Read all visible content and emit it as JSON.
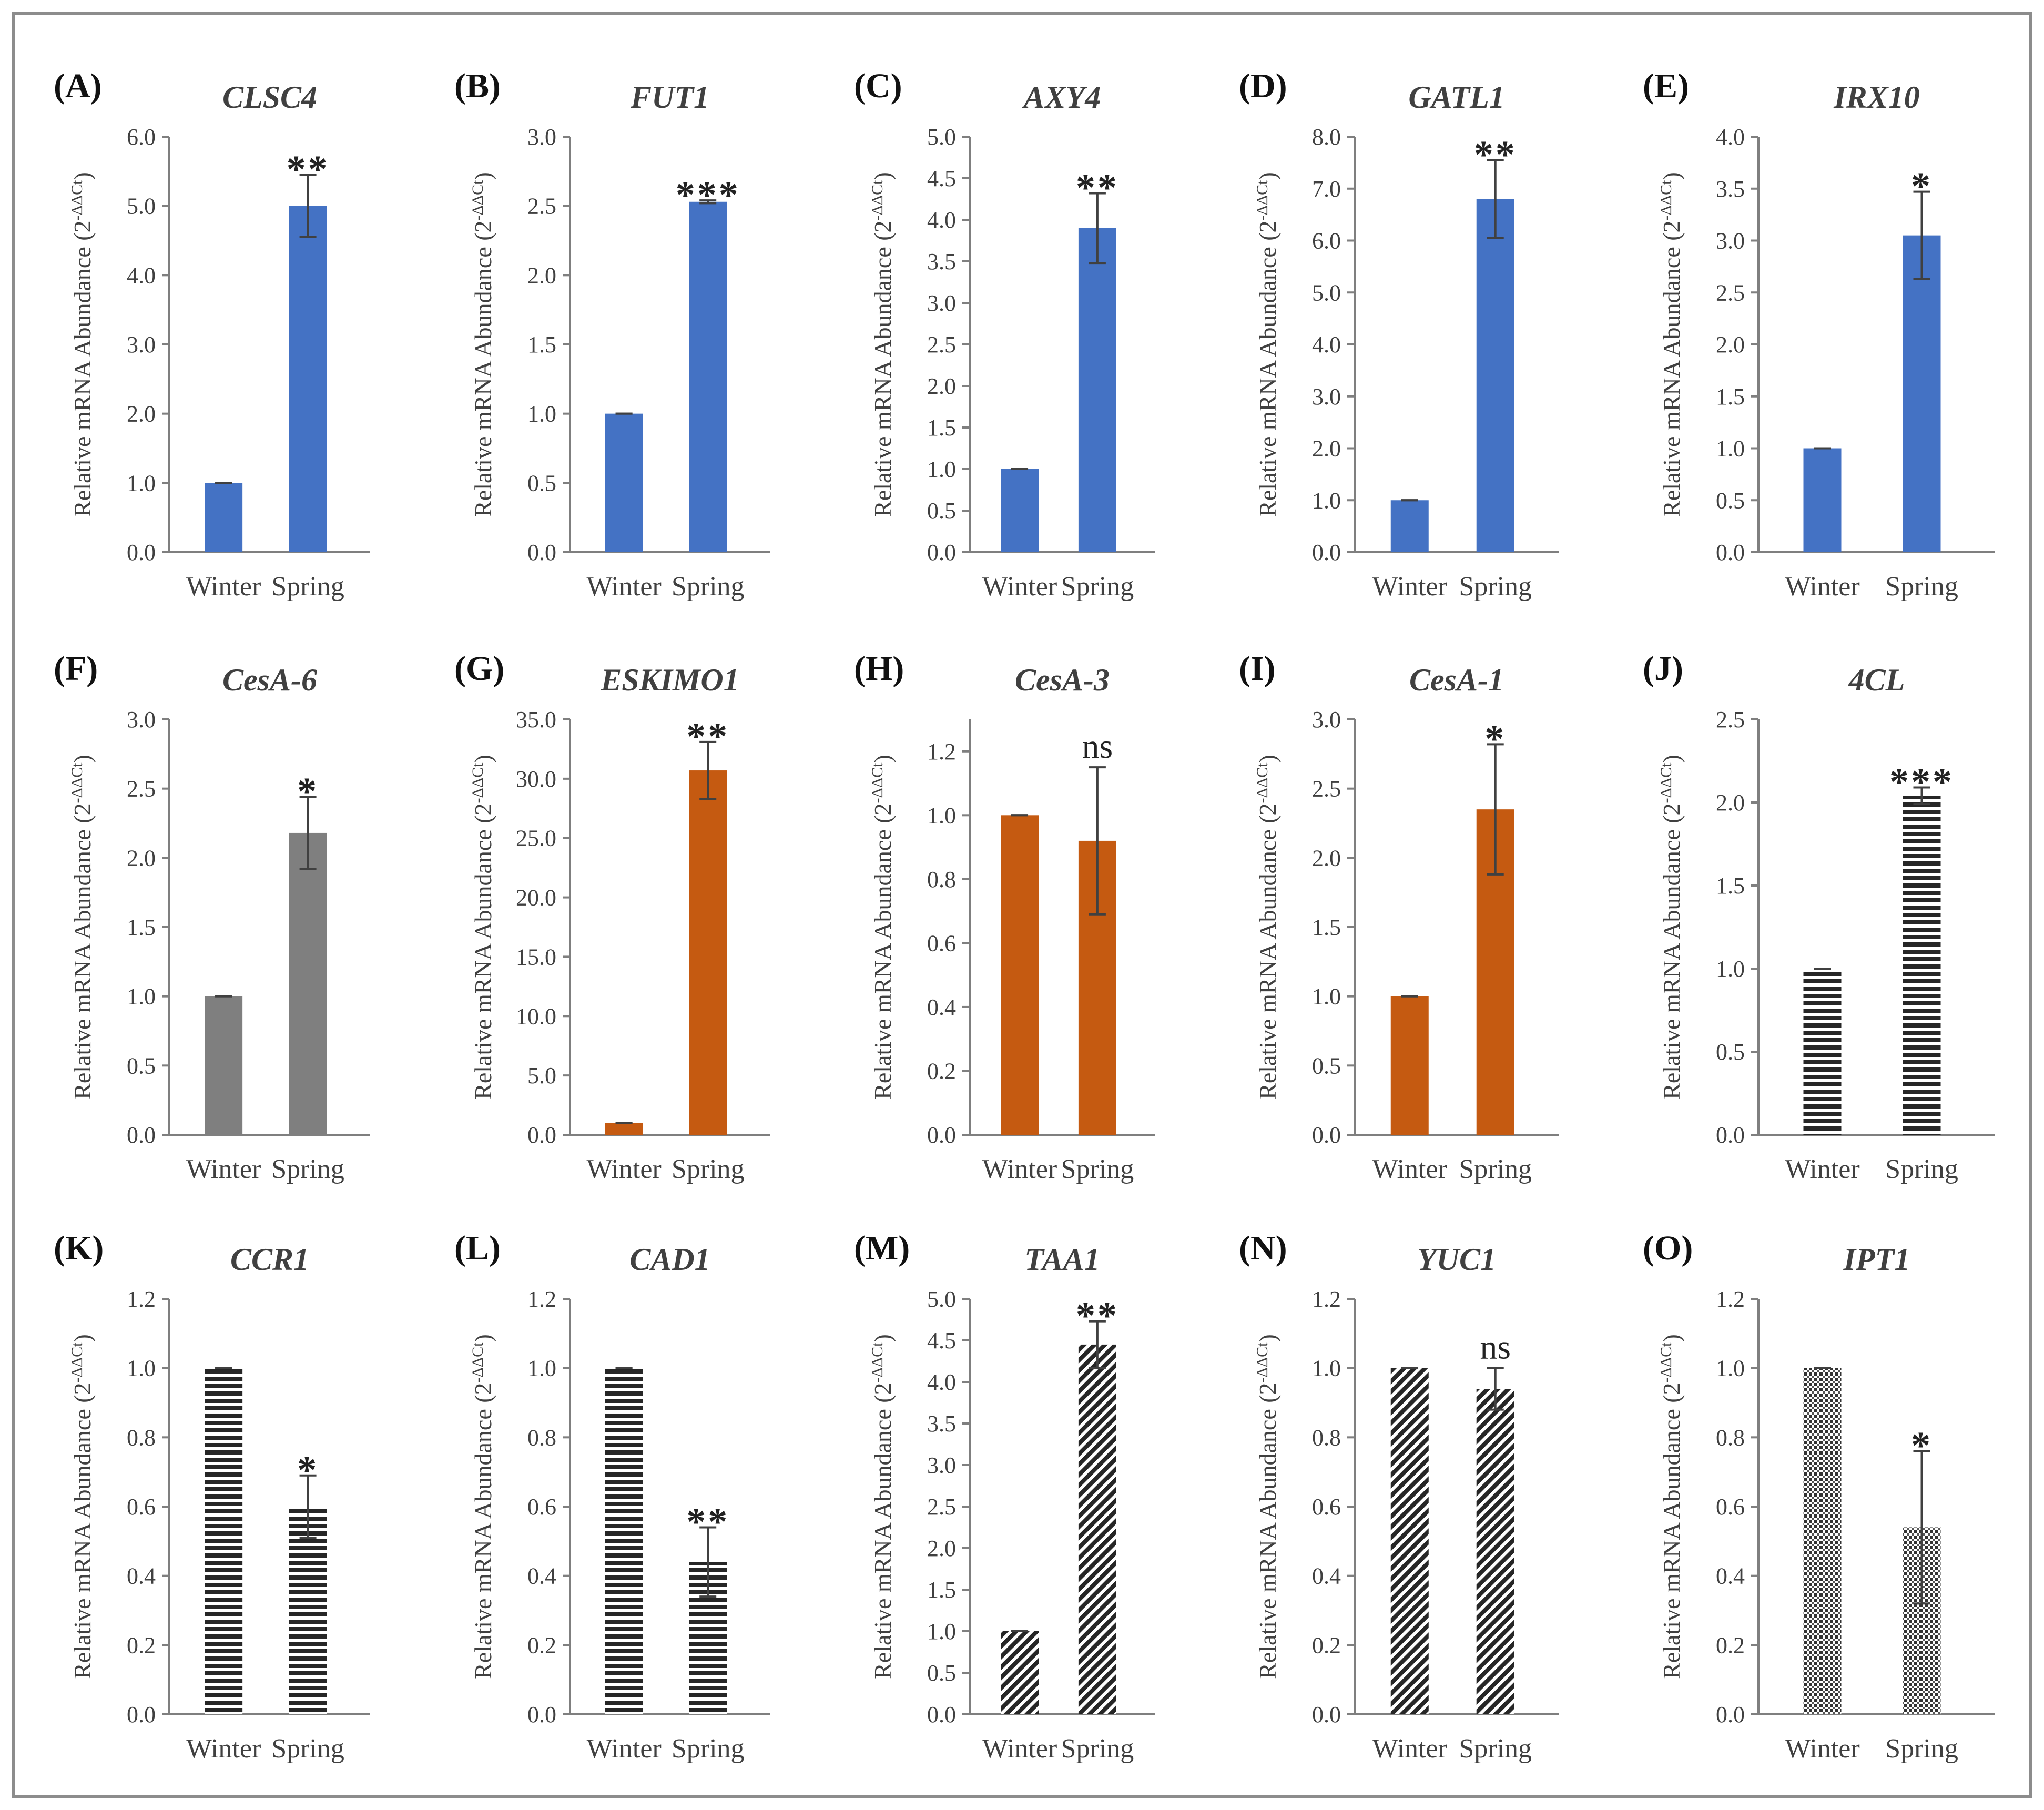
{
  "chart_data": [
    {
      "panel": "(A)",
      "gene": "CLSC4",
      "type": "bar",
      "categories": [
        "Winter",
        "Spring"
      ],
      "values": [
        1.0,
        5.0
      ],
      "errors": [
        0.0,
        0.45
      ],
      "significance": "**",
      "ylim": [
        0,
        6
      ],
      "ticks": [
        "0.0",
        "1.0",
        "2.0",
        "3.0",
        "4.0",
        "5.0",
        "6.0"
      ],
      "color": "#4472c4",
      "pattern": "solid",
      "ylabel_main": "Relative mRNA Abundance (2",
      "ylabel_sup": "-ΔΔCt",
      "ylabel_close": ")"
    },
    {
      "panel": "(B)",
      "gene": "FUT1",
      "type": "bar",
      "categories": [
        "Winter",
        "Spring"
      ],
      "values": [
        1.0,
        2.53
      ],
      "errors": [
        0.0,
        0.01
      ],
      "significance": "***",
      "ylim": [
        0,
        3
      ],
      "ticks": [
        "0.0",
        "0.5",
        "1.0",
        "1.5",
        "2.0",
        "2.5",
        "3.0"
      ],
      "color": "#4472c4",
      "pattern": "solid",
      "ylabel_main": "Relative mRNA Abundance (2",
      "ylabel_sup": "-ΔΔCt",
      "ylabel_close": ")"
    },
    {
      "panel": "(C)",
      "gene": "AXY4",
      "type": "bar",
      "categories": [
        "Winter",
        "Spring"
      ],
      "values": [
        1.0,
        3.9
      ],
      "errors": [
        0.0,
        0.42
      ],
      "significance": "**",
      "ylim": [
        0,
        5
      ],
      "ticks": [
        "0.0",
        "0.5",
        "1.0",
        "1.5",
        "2.0",
        "2.5",
        "3.0",
        "3.5",
        "4.0",
        "4.5",
        "5.0"
      ],
      "color": "#4472c4",
      "pattern": "solid",
      "ylabel_main": "Relative mRNA Abundance (2",
      "ylabel_sup": "-ΔΔCt",
      "ylabel_close": ")"
    },
    {
      "panel": "(D)",
      "gene": "GATL1",
      "type": "bar",
      "categories": [
        "Winter",
        "Spring"
      ],
      "values": [
        1.0,
        6.8
      ],
      "errors": [
        0.0,
        0.75
      ],
      "significance": "**",
      "ylim": [
        0,
        8
      ],
      "ticks": [
        "0.0",
        "1.0",
        "2.0",
        "3.0",
        "4.0",
        "5.0",
        "6.0",
        "7.0",
        "8.0"
      ],
      "color": "#4472c4",
      "pattern": "solid",
      "ylabel_main": "Relative mRNA Abundance (2",
      "ylabel_sup": "-ΔΔCt",
      "ylabel_close": ")"
    },
    {
      "panel": "(E)",
      "gene": "IRX10",
      "type": "bar",
      "categories": [
        "Winter",
        "Spring"
      ],
      "values": [
        1.0,
        3.05
      ],
      "errors": [
        0.0,
        0.42
      ],
      "significance": "*",
      "ylim": [
        0,
        4
      ],
      "ticks": [
        "0.0",
        "0.5",
        "1.0",
        "1.5",
        "2.0",
        "2.5",
        "3.0",
        "3.5",
        "4.0"
      ],
      "color": "#4472c4",
      "pattern": "solid",
      "ylabel_main": "Relative mRNA Abundance (2",
      "ylabel_sup": "-ΔΔCt",
      "ylabel_close": ")"
    },
    {
      "panel": "(F)",
      "gene": "CesA-6",
      "type": "bar",
      "categories": [
        "Winter",
        "Spring"
      ],
      "values": [
        1.0,
        2.18
      ],
      "errors": [
        0.0,
        0.26
      ],
      "significance": "*",
      "ylim": [
        0,
        3
      ],
      "ticks": [
        "0.0",
        "0.5",
        "1.0",
        "1.5",
        "2.0",
        "2.5",
        "3.0"
      ],
      "color": "#7f7f7f",
      "pattern": "solid",
      "ylabel_main": "Relative mRNA Abundance (2",
      "ylabel_sup": "-ΔΔCt",
      "ylabel_close": ")"
    },
    {
      "panel": "(G)",
      "gene": "ESKIMO1",
      "type": "bar",
      "categories": [
        "Winter",
        "Spring"
      ],
      "values": [
        1.0,
        30.7
      ],
      "errors": [
        0.0,
        2.4
      ],
      "significance": "**",
      "ylim": [
        0,
        35
      ],
      "ticks": [
        "0.0",
        "5.0",
        "10.0",
        "15.0",
        "20.0",
        "25.0",
        "30.0",
        "35.0"
      ],
      "color": "#c55a11",
      "pattern": "solid",
      "ylabel_main": "Relative mRNA Abundance (2",
      "ylabel_sup": "-ΔΔCt",
      "ylabel_close": ")"
    },
    {
      "panel": "(H)",
      "gene": "CesA-3",
      "type": "bar",
      "categories": [
        "Winter",
        "Spring"
      ],
      "values": [
        1.0,
        0.92
      ],
      "errors": [
        0.0,
        0.23
      ],
      "significance": "ns",
      "ylim": [
        0,
        1.3
      ],
      "ticks": [
        "0.0",
        "0.2",
        "0.4",
        "0.6",
        "0.8",
        "1.0",
        "1.2"
      ],
      "tick_step": 0.2,
      "color": "#c55a11",
      "pattern": "solid",
      "ylabel_main": "Relative mRNA Abundance (2",
      "ylabel_sup": "-ΔΔCt",
      "ylabel_close": ")"
    },
    {
      "panel": "(I)",
      "gene": "CesA-1",
      "type": "bar",
      "categories": [
        "Winter",
        "Spring"
      ],
      "values": [
        1.0,
        2.35
      ],
      "errors": [
        0.0,
        0.47
      ],
      "significance": "*",
      "ylim": [
        0,
        3
      ],
      "ticks": [
        "0.0",
        "0.5",
        "1.0",
        "1.5",
        "2.0",
        "2.5",
        "3.0"
      ],
      "color": "#c55a11",
      "pattern": "solid",
      "ylabel_main": "Relative mRNA Abundance (2",
      "ylabel_sup": "-ΔΔCt",
      "ylabel_close": ")"
    },
    {
      "panel": "(J)",
      "gene": "4CL",
      "type": "bar",
      "categories": [
        "Winter",
        "Spring"
      ],
      "values": [
        1.0,
        2.04
      ],
      "errors": [
        0.0,
        0.05
      ],
      "significance": "***",
      "ylim": [
        0,
        2.5
      ],
      "ticks": [
        "0.0",
        "0.5",
        "1.0",
        "1.5",
        "2.0",
        "2.5"
      ],
      "color": "#262626",
      "pattern": "hstripe",
      "ylabel_main": "Relative mRNA Abundance (2",
      "ylabel_sup": "-ΔΔCt",
      "ylabel_close": ")"
    },
    {
      "panel": "(K)",
      "gene": "CCR1",
      "type": "bar",
      "categories": [
        "Winter",
        "Spring"
      ],
      "values": [
        1.0,
        0.6
      ],
      "errors": [
        0.0,
        0.09
      ],
      "significance": "*",
      "ylim": [
        0,
        1.2
      ],
      "ticks": [
        "0.0",
        "0.2",
        "0.4",
        "0.6",
        "0.8",
        "1.0",
        "1.2"
      ],
      "color": "#262626",
      "pattern": "hstripe",
      "ylabel_main": "Relative mRNA Abundance (2",
      "ylabel_sup": "-ΔΔCt",
      "ylabel_close": ")"
    },
    {
      "panel": "(L)",
      "gene": "CAD1",
      "type": "bar",
      "categories": [
        "Winter",
        "Spring"
      ],
      "values": [
        1.0,
        0.44
      ],
      "errors": [
        0.0,
        0.1
      ],
      "significance": "**",
      "ylim": [
        0,
        1.2
      ],
      "ticks": [
        "0.0",
        "0.2",
        "0.4",
        "0.6",
        "0.8",
        "1.0",
        "1.2"
      ],
      "color": "#262626",
      "pattern": "hstripe",
      "ylabel_main": "Relative mRNA Abundance (2",
      "ylabel_sup": "-ΔΔCt",
      "ylabel_close": ")"
    },
    {
      "panel": "(M)",
      "gene": "TAA1",
      "type": "bar",
      "categories": [
        "Winter",
        "Spring"
      ],
      "values": [
        1.0,
        4.45
      ],
      "errors": [
        0.0,
        0.28
      ],
      "significance": "**",
      "ylim": [
        0,
        5
      ],
      "ticks": [
        "0.0",
        "0.5",
        "1.0",
        "1.5",
        "2.0",
        "2.5",
        "3.0",
        "3.5",
        "4.0",
        "4.5",
        "5.0"
      ],
      "color": "#262626",
      "pattern": "diag",
      "ylabel_main": "Relative mRNA Abundance (2",
      "ylabel_sup": "-ΔΔCt",
      "ylabel_close": ")"
    },
    {
      "panel": "(N)",
      "gene": "YUC1",
      "type": "bar",
      "categories": [
        "Winter",
        "Spring"
      ],
      "values": [
        1.0,
        0.94
      ],
      "errors": [
        0.0,
        0.06
      ],
      "significance": "ns",
      "ylim": [
        0,
        1.2
      ],
      "ticks": [
        "0.0",
        "0.2",
        "0.4",
        "0.6",
        "0.8",
        "1.0",
        "1.2"
      ],
      "color": "#262626",
      "pattern": "diag",
      "ylabel_main": "Relative mRNA Abundance (2",
      "ylabel_sup": "-ΔΔCt",
      "ylabel_close": ")"
    },
    {
      "panel": "(O)",
      "gene": "IPT1",
      "type": "bar",
      "categories": [
        "Winter",
        "Spring"
      ],
      "values": [
        1.0,
        0.54
      ],
      "errors": [
        0.0,
        0.22
      ],
      "significance": "*",
      "ylim": [
        0,
        1.2
      ],
      "ticks": [
        "0.0",
        "0.2",
        "0.4",
        "0.6",
        "0.8",
        "1.0",
        "1.2"
      ],
      "color": "#262626",
      "pattern": "cross",
      "ylabel_main": "Relative mRNA Abundance (2",
      "ylabel_sup": "-ΔΔCt",
      "ylabel_close": ")"
    }
  ]
}
